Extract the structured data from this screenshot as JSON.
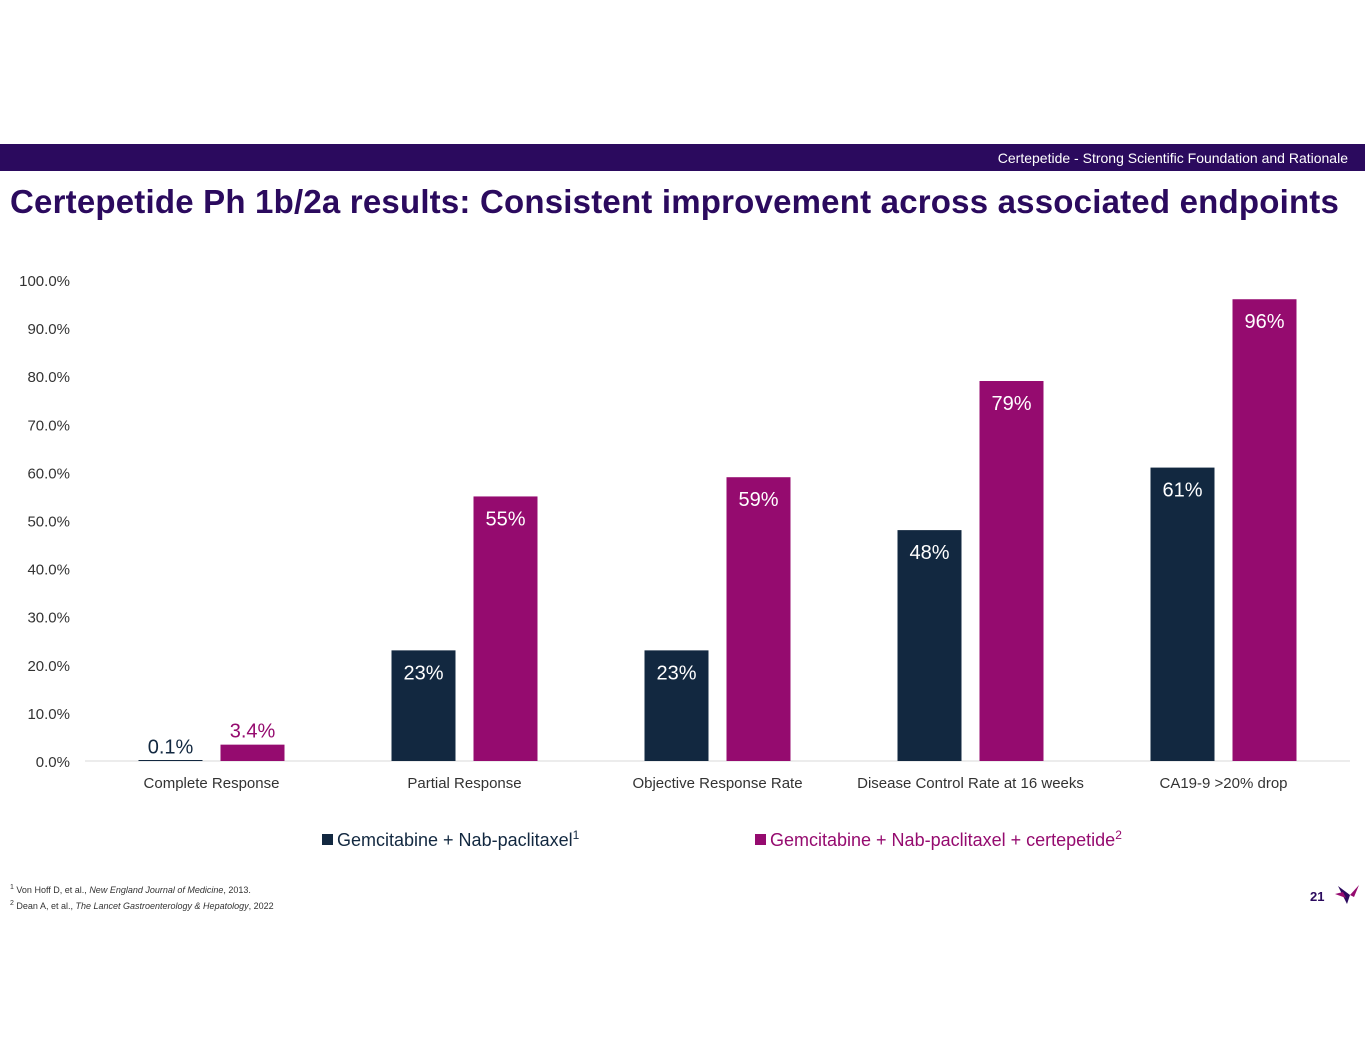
{
  "header": {
    "section_label": "Certepetide - Strong Scientific Foundation and Rationale"
  },
  "page_title": "Certepetide Ph 1b/2a results: Consistent improvement across associated endpoints",
  "chart_data": {
    "type": "bar",
    "title": "",
    "xlabel": "",
    "ylabel": "",
    "ylim": [
      0,
      100
    ],
    "y_ticks": [
      "0.0%",
      "10.0%",
      "20.0%",
      "30.0%",
      "40.0%",
      "50.0%",
      "60.0%",
      "70.0%",
      "80.0%",
      "90.0%",
      "100.0%"
    ],
    "categories": [
      "Complete Response",
      "Partial Response",
      "Objective Response Rate",
      "Disease Control Rate at 16 weeks",
      "CA19-9 >20% drop"
    ],
    "series": [
      {
        "name": "Gemcitabine + Nab-paclitaxel",
        "superscript": "1",
        "color": "#122840",
        "values": [
          0.1,
          23,
          23,
          48,
          61
        ],
        "labels": [
          "0.1%",
          "23%",
          "23%",
          "48%",
          "61%"
        ]
      },
      {
        "name": "Gemcitabine + Nab-paclitaxel + certepetide",
        "superscript": "2",
        "color": "#950b6f",
        "values": [
          3.4,
          55,
          59,
          79,
          96
        ],
        "labels": [
          "3.4%",
          "55%",
          "59%",
          "79%",
          "96%"
        ]
      }
    ],
    "grid": false,
    "legend_position": "bottom"
  },
  "footnotes": [
    {
      "num": "1",
      "authors": "Von Hoff D, et al.,",
      "journal": "New England Journal of Medicine",
      "tail": ", 2013."
    },
    {
      "num": "2",
      "authors": "Dean A, et al.,",
      "journal": "The Lancet Gastroenterology & Hepatology",
      "tail": ", 2022"
    }
  ],
  "page_number": "21",
  "colors": {
    "brand_purple": "#2b0a5e",
    "series_dark": "#122840",
    "series_magenta": "#950b6f"
  }
}
